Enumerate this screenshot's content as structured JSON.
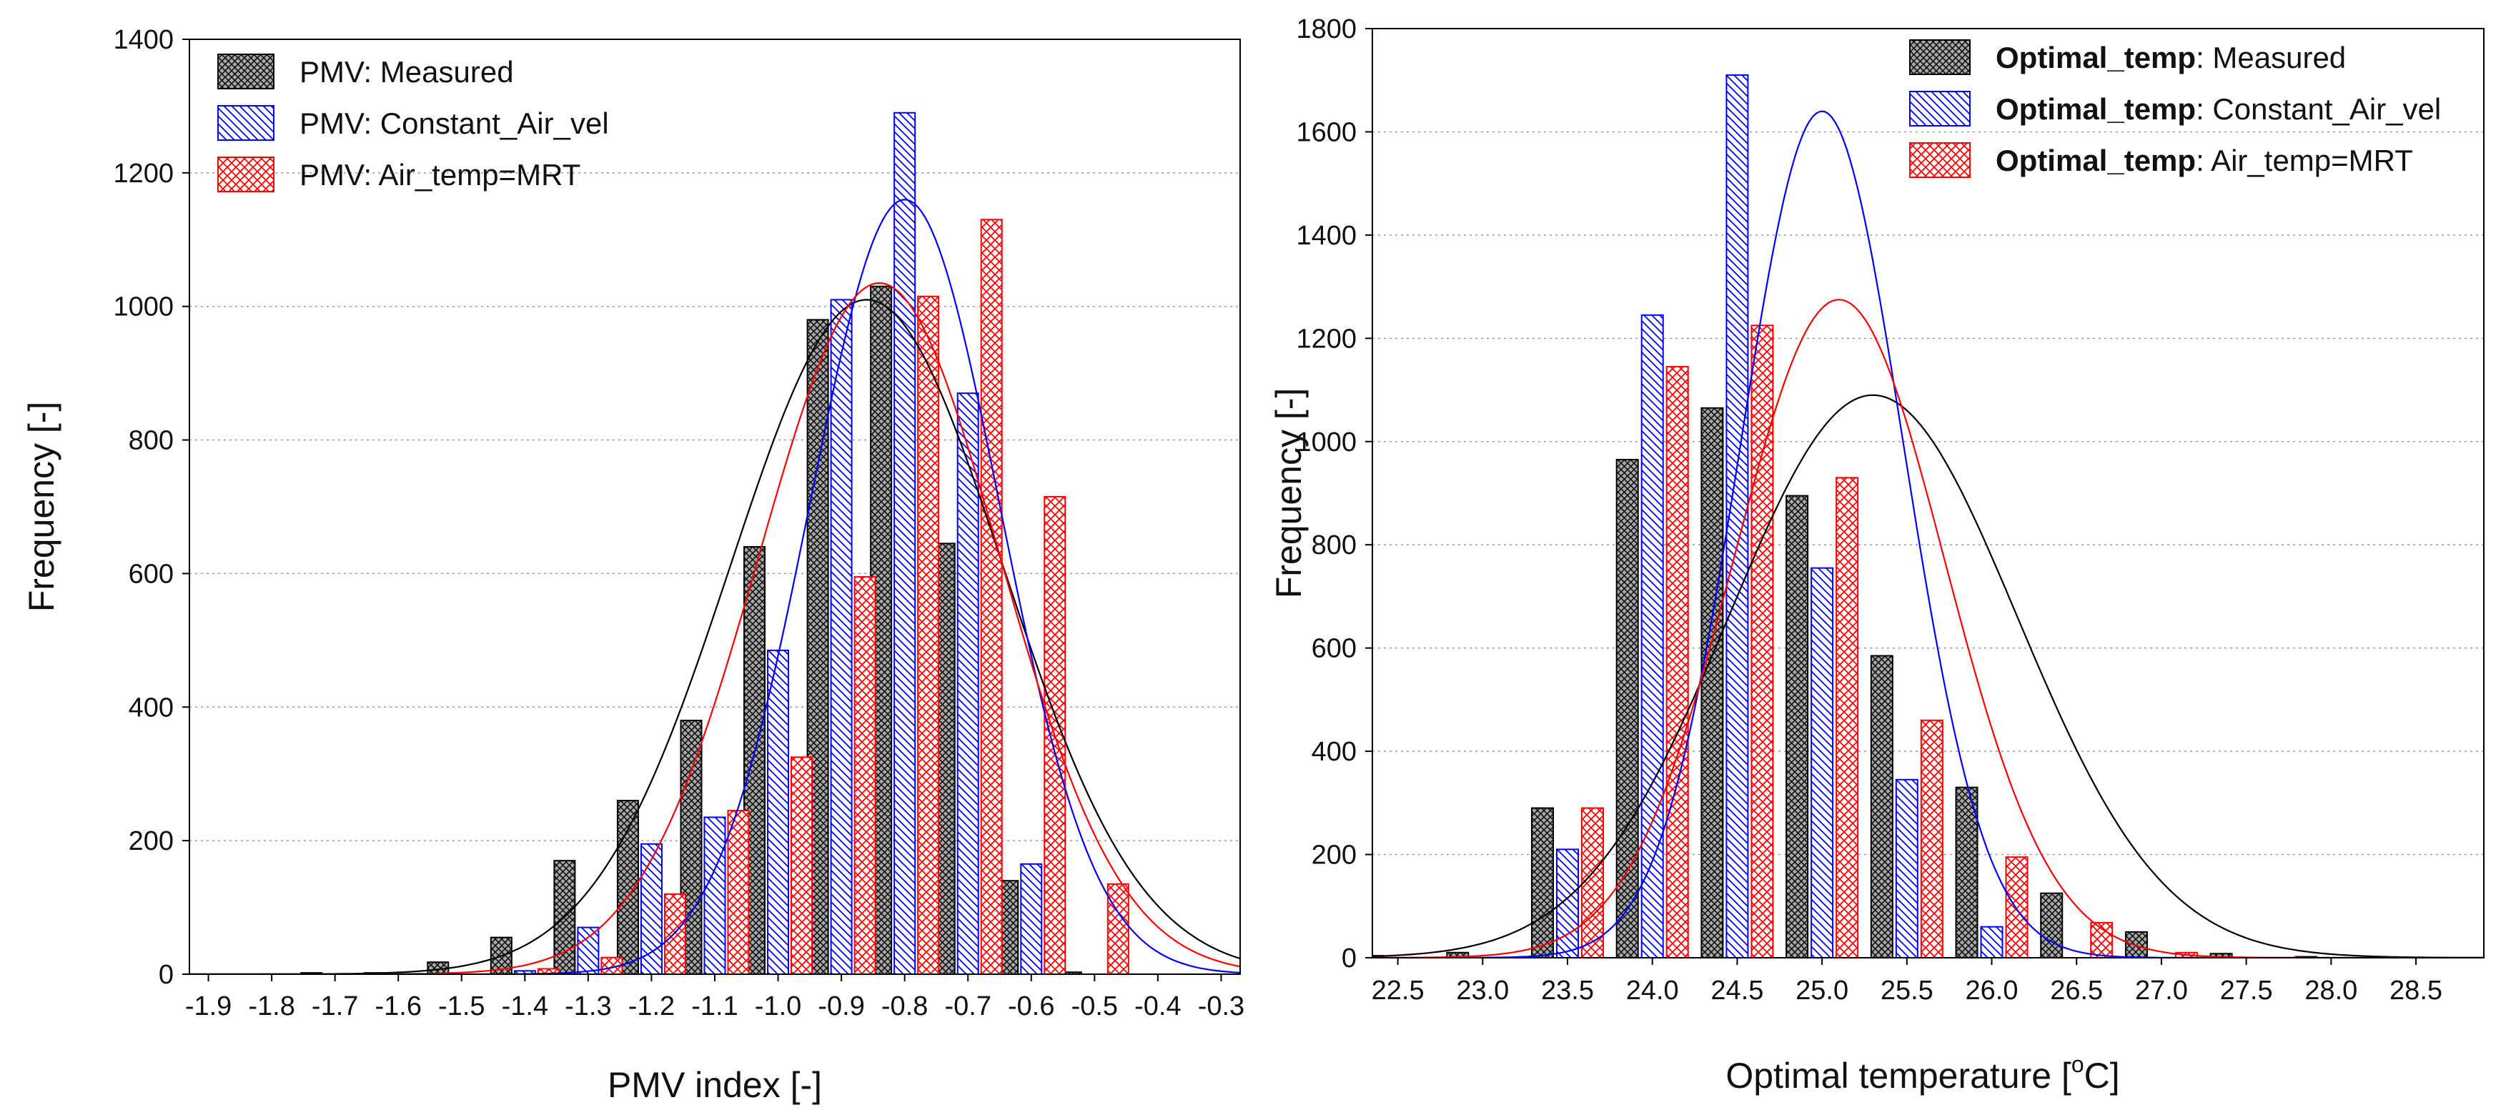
{
  "chart_data": [
    {
      "type": "bar",
      "xlabel": "PMV index [-]",
      "ylabel": "Frequency [-]",
      "ylim": [
        0,
        1400
      ],
      "yticks": [
        "0",
        "200",
        "400",
        "600",
        "800",
        "1000",
        "1200",
        "1400"
      ],
      "xlim": [
        -1.93,
        -0.27
      ],
      "xticks": [
        "-1.9",
        "-1.8",
        "-1.7",
        "-1.6",
        "-1.5",
        "-1.4",
        "-1.3",
        "-1.2",
        "-1.1",
        "-1.0",
        "-0.9",
        "-0.8",
        "-0.7",
        "-0.6",
        "-0.5",
        "-0.4",
        "-0.3"
      ],
      "grid": "horizontal dotted",
      "legend_position": "top-left",
      "bins": [
        -1.7,
        -1.6,
        -1.5,
        -1.4,
        -1.3,
        -1.2,
        -1.1,
        -1.0,
        -0.9,
        -0.8,
        -0.7,
        -0.6,
        -0.5
      ],
      "series": [
        {
          "name": "PMV: Measured",
          "key": "PMV",
          "suffix": ": Measured",
          "color": "#000000",
          "pattern": "crosshatch-black",
          "values": [
            2,
            2,
            18,
            55,
            170,
            260,
            380,
            640,
            980,
            1030,
            645,
            140,
            3
          ],
          "fit": {
            "mean": -0.86,
            "sd": 0.215,
            "peak": 1010
          }
        },
        {
          "name": "PMV: Constant_Air_vel",
          "key": "PMV",
          "suffix": ": Constant_Air_vel",
          "color": "#0000ff",
          "pattern": "diag-blue",
          "values": [
            0,
            0,
            0,
            5,
            70,
            195,
            235,
            485,
            1010,
            1290,
            870,
            165,
            0
          ],
          "fit": {
            "mean": -0.8,
            "sd": 0.15,
            "peak": 1160
          }
        },
        {
          "name": "PMV: Air_temp=MRT",
          "key": "PMV",
          "suffix": ": Air_temp=MRT",
          "color": "#ff0000",
          "pattern": "crosshatch-red",
          "values": [
            0,
            0,
            0,
            8,
            25,
            120,
            245,
            325,
            595,
            1015,
            1130,
            715,
            135
          ],
          "fit": {
            "mean": -0.84,
            "sd": 0.19,
            "peak": 1035
          }
        }
      ]
    },
    {
      "type": "bar",
      "xlabel": "Optimal temperature [°C]",
      "xlabel_main": "Optimal temperature [",
      "xlabel_sup": "o",
      "xlabel_end": "C]",
      "ylabel": "Frequency [-]",
      "ylim": [
        0,
        1800
      ],
      "yticks": [
        "0",
        "200",
        "400",
        "600",
        "800",
        "1000",
        "1200",
        "1400",
        "1600",
        "1800"
      ],
      "xlim": [
        22.35,
        28.9
      ],
      "xticks": [
        "22.5",
        "23.0",
        "23.5",
        "24.0",
        "24.5",
        "25.0",
        "25.5",
        "26.0",
        "26.5",
        "27.0",
        "27.5",
        "28.0",
        "28.5"
      ],
      "grid": "horizontal dotted",
      "legend_position": "top-right",
      "bins": [
        22.5,
        23.0,
        23.5,
        24.0,
        24.5,
        25.0,
        25.5,
        26.0,
        26.5,
        27.0,
        27.5,
        28.0
      ],
      "series": [
        {
          "name": "Optimal_temp: Measured",
          "key": "Optimal_temp",
          "suffix": ": Measured",
          "color": "#000000",
          "pattern": "crosshatch-black",
          "values": [
            4,
            10,
            290,
            965,
            1065,
            895,
            585,
            330,
            125,
            50,
            8,
            2
          ],
          "fit": {
            "mean": 25.3,
            "sd": 0.85,
            "peak": 1090
          }
        },
        {
          "name": "Optimal_temp: Constant_Air_vel",
          "key": "Optimal_temp",
          "suffix": ": Constant_Air_vel",
          "color": "#0000ff",
          "pattern": "diag-blue",
          "values": [
            0,
            0,
            210,
            1245,
            1710,
            755,
            345,
            60,
            0,
            0,
            0,
            0
          ],
          "fit": {
            "mean": 25.0,
            "sd": 0.48,
            "peak": 1640
          }
        },
        {
          "name": "Optimal_temp: Air_temp=MRT",
          "key": "Optimal_temp",
          "suffix": ": Air_temp=MRT",
          "color": "#ff0000",
          "pattern": "crosshatch-red",
          "values": [
            0,
            0,
            290,
            1145,
            1225,
            930,
            460,
            195,
            68,
            10,
            0,
            0
          ],
          "fit": {
            "mean": 25.1,
            "sd": 0.62,
            "peak": 1275
          }
        }
      ]
    }
  ]
}
